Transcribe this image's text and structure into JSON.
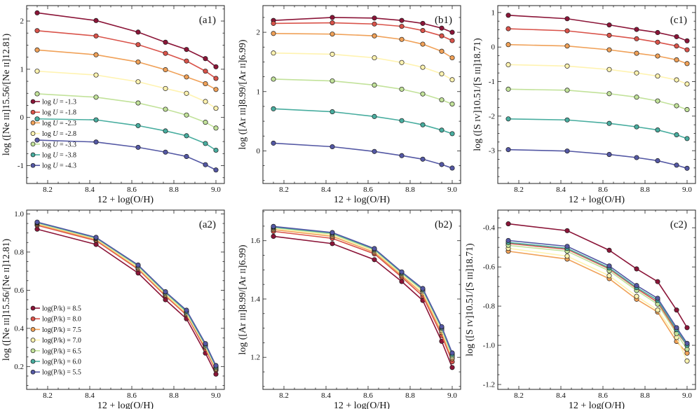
{
  "colors": {
    "series": [
      "#8b1538",
      "#d9534a",
      "#f0a158",
      "#fff3b0",
      "#c2e29a",
      "#48ad9f",
      "#5458a4"
    ],
    "axis": "#222222"
  },
  "chart_data": [
    {
      "id": "a1",
      "type": "line",
      "panel_label": "(a1)",
      "xlabel": "12 + log(O/H)",
      "ylabel": "log ([Ne III]15.56/[Ne II]12.81)",
      "xlim": [
        8.1,
        9.04
      ],
      "ylim": [
        -1.37,
        2.32
      ],
      "xticks": [
        "8.2",
        "8.4",
        "8.6",
        "8.8",
        "9.0"
      ],
      "yticks": [
        "-1",
        "0",
        "1",
        "2"
      ],
      "x": [
        8.15,
        8.43,
        8.63,
        8.76,
        8.86,
        8.95,
        9.0
      ],
      "legend_position": "middle-left",
      "series": [
        {
          "name": "log U = -1.3",
          "values": [
            2.17,
            2.01,
            1.77,
            1.56,
            1.41,
            1.22,
            1.05
          ]
        },
        {
          "name": "log U = -1.8",
          "values": [
            1.8,
            1.69,
            1.51,
            1.33,
            1.17,
            0.96,
            0.81
          ]
        },
        {
          "name": "log U = -2.3",
          "values": [
            1.4,
            1.3,
            1.15,
            0.99,
            0.84,
            0.7,
            0.58
          ]
        },
        {
          "name": "log U = -2.8",
          "values": [
            0.96,
            0.88,
            0.74,
            0.6,
            0.5,
            0.33,
            0.19
          ]
        },
        {
          "name": "log U = -3.3",
          "values": [
            0.49,
            0.42,
            0.3,
            0.17,
            0.05,
            -0.1,
            -0.22
          ]
        },
        {
          "name": "log U = -3.8",
          "values": [
            -0.03,
            -0.05,
            -0.17,
            -0.28,
            -0.38,
            -0.54,
            -0.68
          ]
        },
        {
          "name": "log U = -4.3",
          "values": [
            -0.47,
            -0.51,
            -0.62,
            -0.72,
            -0.81,
            -0.98,
            -1.09
          ]
        }
      ]
    },
    {
      "id": "b1",
      "type": "line",
      "panel_label": "(b1)",
      "xlabel": "12 + log(O/H)",
      "ylabel": "log ([Ar III]8.99/[Ar II]6.99)",
      "xlim": [
        8.1,
        9.04
      ],
      "ylim": [
        -0.55,
        2.45
      ],
      "xticks": [
        "8.2",
        "8.4",
        "8.6",
        "8.8",
        "9.0"
      ],
      "yticks": [
        "0",
        "1",
        "2"
      ],
      "x": [
        8.15,
        8.43,
        8.63,
        8.76,
        8.86,
        8.95,
        9.0
      ],
      "series": [
        {
          "name": "log U = -1.3",
          "values": [
            2.2,
            2.25,
            2.24,
            2.2,
            2.15,
            2.07,
            2.0
          ]
        },
        {
          "name": "log U = -1.8",
          "values": [
            2.15,
            2.16,
            2.14,
            2.1,
            2.03,
            1.94,
            1.86
          ]
        },
        {
          "name": "log U = -2.3",
          "values": [
            1.98,
            1.97,
            1.94,
            1.88,
            1.8,
            1.68,
            1.57
          ]
        },
        {
          "name": "log U = -2.8",
          "values": [
            1.65,
            1.63,
            1.57,
            1.49,
            1.41,
            1.3,
            1.2
          ]
        },
        {
          "name": "log U = -3.3",
          "values": [
            1.21,
            1.18,
            1.11,
            1.04,
            0.96,
            0.86,
            0.79
          ]
        },
        {
          "name": "log U = -3.8",
          "values": [
            0.71,
            0.66,
            0.58,
            0.51,
            0.44,
            0.35,
            0.29
          ]
        },
        {
          "name": "log U = -4.3",
          "values": [
            0.13,
            0.07,
            -0.01,
            -0.08,
            -0.14,
            -0.23,
            -0.29
          ]
        }
      ]
    },
    {
      "id": "c1",
      "type": "line",
      "panel_label": "(c1)",
      "xlabel": "12 + log(O/H)",
      "ylabel": "log ([S IV]10.51/[S III]18.71)",
      "xlim": [
        8.1,
        9.04
      ],
      "ylim": [
        -3.95,
        1.2
      ],
      "xticks": [
        "8.2",
        "8.4",
        "8.6",
        "8.8",
        "9.0"
      ],
      "yticks": [
        "-3",
        "-2",
        "-1",
        "0",
        "1"
      ],
      "x": [
        8.15,
        8.43,
        8.63,
        8.76,
        8.86,
        8.95,
        9.0
      ],
      "series": [
        {
          "name": "log U = -1.3",
          "values": [
            0.92,
            0.82,
            0.64,
            0.51,
            0.42,
            0.3,
            0.18
          ]
        },
        {
          "name": "log U = -1.8",
          "values": [
            0.53,
            0.47,
            0.34,
            0.24,
            0.14,
            0.03,
            -0.08
          ]
        },
        {
          "name": "log U = -2.3",
          "values": [
            0.07,
            0.03,
            -0.08,
            -0.18,
            -0.26,
            -0.37,
            -0.48
          ]
        },
        {
          "name": "log U = -2.8",
          "values": [
            -0.51,
            -0.55,
            -0.65,
            -0.75,
            -0.84,
            -0.95,
            -1.07
          ]
        },
        {
          "name": "log U = -3.3",
          "values": [
            -1.22,
            -1.25,
            -1.35,
            -1.45,
            -1.56,
            -1.7,
            -1.81
          ]
        },
        {
          "name": "log U = -3.8",
          "values": [
            -2.08,
            -2.11,
            -2.21,
            -2.31,
            -2.4,
            -2.54,
            -2.65
          ]
        },
        {
          "name": "log U = -4.3",
          "values": [
            -2.97,
            -3.01,
            -3.11,
            -3.2,
            -3.29,
            -3.42,
            -3.51
          ]
        }
      ]
    },
    {
      "id": "a2",
      "type": "line",
      "panel_label": "(a2)",
      "xlabel": "12 + log(O/H)",
      "ylabel": "log ([Ne III]15.56/[Ne II]12.81)",
      "xlim": [
        8.1,
        9.04
      ],
      "ylim": [
        0.08,
        1.02
      ],
      "xticks": [
        "8.2",
        "8.4",
        "8.6",
        "8.8",
        "9.0"
      ],
      "yticks": [
        "0.2",
        "0.4",
        "0.6",
        "0.8",
        "1.0"
      ],
      "x": [
        8.15,
        8.43,
        8.63,
        8.76,
        8.86,
        8.95,
        9.0
      ],
      "legend_position": "lower-left",
      "series": [
        {
          "name": "log(P/k) = 8.5",
          "values": [
            0.92,
            0.84,
            0.69,
            0.55,
            0.45,
            0.27,
            0.16
          ]
        },
        {
          "name": "log(P/k) = 8.0",
          "values": [
            0.94,
            0.86,
            0.71,
            0.57,
            0.47,
            0.29,
            0.18
          ]
        },
        {
          "name": "log(P/k) = 7.5",
          "values": [
            0.945,
            0.865,
            0.715,
            0.575,
            0.475,
            0.3,
            0.185
          ]
        },
        {
          "name": "log(P/k) = 7.0",
          "values": [
            0.95,
            0.87,
            0.72,
            0.58,
            0.48,
            0.305,
            0.19
          ]
        },
        {
          "name": "log(P/k) = 6.5",
          "values": [
            0.952,
            0.872,
            0.725,
            0.585,
            0.485,
            0.31,
            0.195
          ]
        },
        {
          "name": "log(P/k) = 6.0",
          "values": [
            0.955,
            0.875,
            0.73,
            0.59,
            0.49,
            0.315,
            0.2
          ]
        },
        {
          "name": "log(P/k) = 5.5",
          "values": [
            0.957,
            0.877,
            0.732,
            0.592,
            0.495,
            0.32,
            0.205
          ]
        }
      ]
    },
    {
      "id": "b2",
      "type": "line",
      "panel_label": "(b2)",
      "xlabel": "12 + log(O/H)",
      "ylabel": "log ([Ar III]8.99/[Ar II]6.99)",
      "xlim": [
        8.1,
        9.04
      ],
      "ylim": [
        1.09,
        1.705
      ],
      "xticks": [
        "8.2",
        "8.4",
        "8.6",
        "8.8",
        "9.0"
      ],
      "yticks": [
        "1.2",
        "1.4",
        "1.6"
      ],
      "x": [
        8.15,
        8.43,
        8.63,
        8.76,
        8.86,
        8.95,
        9.0
      ],
      "series": [
        {
          "name": "log(P/k) = 8.5",
          "values": [
            1.615,
            1.59,
            1.535,
            1.46,
            1.395,
            1.255,
            1.165
          ]
        },
        {
          "name": "log(P/k) = 8.0",
          "values": [
            1.632,
            1.608,
            1.555,
            1.475,
            1.41,
            1.275,
            1.185
          ]
        },
        {
          "name": "log(P/k) = 7.5",
          "values": [
            1.638,
            1.615,
            1.56,
            1.48,
            1.418,
            1.285,
            1.195
          ]
        },
        {
          "name": "log(P/k) = 7.0",
          "values": [
            1.642,
            1.62,
            1.565,
            1.485,
            1.425,
            1.292,
            1.2
          ]
        },
        {
          "name": "log(P/k) = 6.5",
          "values": [
            1.645,
            1.623,
            1.568,
            1.488,
            1.43,
            1.298,
            1.205
          ]
        },
        {
          "name": "log(P/k) = 6.0",
          "values": [
            1.647,
            1.626,
            1.571,
            1.491,
            1.433,
            1.302,
            1.21
          ]
        },
        {
          "name": "log(P/k) = 5.5",
          "values": [
            1.649,
            1.628,
            1.573,
            1.493,
            1.436,
            1.305,
            1.215
          ]
        }
      ]
    },
    {
      "id": "c2",
      "type": "line",
      "panel_label": "(c2)",
      "xlabel": "12 + log(O/H)",
      "ylabel": "log ([S IV]10.51/[S III]18.71)",
      "xlim": [
        8.1,
        9.04
      ],
      "ylim": [
        -1.225,
        -0.31
      ],
      "xticks": [
        "8.2",
        "8.4",
        "8.6",
        "8.8",
        "9.0"
      ],
      "yticks": [
        "-1.2",
        "-1.0",
        "-0.8",
        "-0.6",
        "-0.4"
      ],
      "x": [
        8.15,
        8.43,
        8.63,
        8.76,
        8.86,
        8.95,
        9.0
      ],
      "series": [
        {
          "name": "log(P/k) = 8.5",
          "values": [
            -0.38,
            -0.415,
            -0.515,
            -0.61,
            -0.675,
            -0.82,
            -0.91
          ]
        },
        {
          "name": "log(P/k) = 8.0",
          "values": [
            -0.48,
            -0.51,
            -0.61,
            -0.71,
            -0.78,
            -0.93,
            -1.0
          ]
        },
        {
          "name": "log(P/k) = 7.5",
          "values": [
            -0.52,
            -0.56,
            -0.66,
            -0.765,
            -0.83,
            -0.98,
            -1.04
          ]
        },
        {
          "name": "log(P/k) = 7.0",
          "values": [
            -0.505,
            -0.545,
            -0.645,
            -0.75,
            -0.82,
            -0.96,
            -1.08
          ]
        },
        {
          "name": "log(P/k) = 6.5",
          "values": [
            -0.49,
            -0.52,
            -0.62,
            -0.72,
            -0.79,
            -0.94,
            -1.02
          ]
        },
        {
          "name": "log(P/k) = 6.0",
          "values": [
            -0.475,
            -0.505,
            -0.605,
            -0.705,
            -0.77,
            -0.92,
            -1.0
          ]
        },
        {
          "name": "log(P/k) = 5.5",
          "values": [
            -0.465,
            -0.495,
            -0.595,
            -0.695,
            -0.76,
            -0.91,
            -0.99
          ]
        }
      ]
    }
  ]
}
